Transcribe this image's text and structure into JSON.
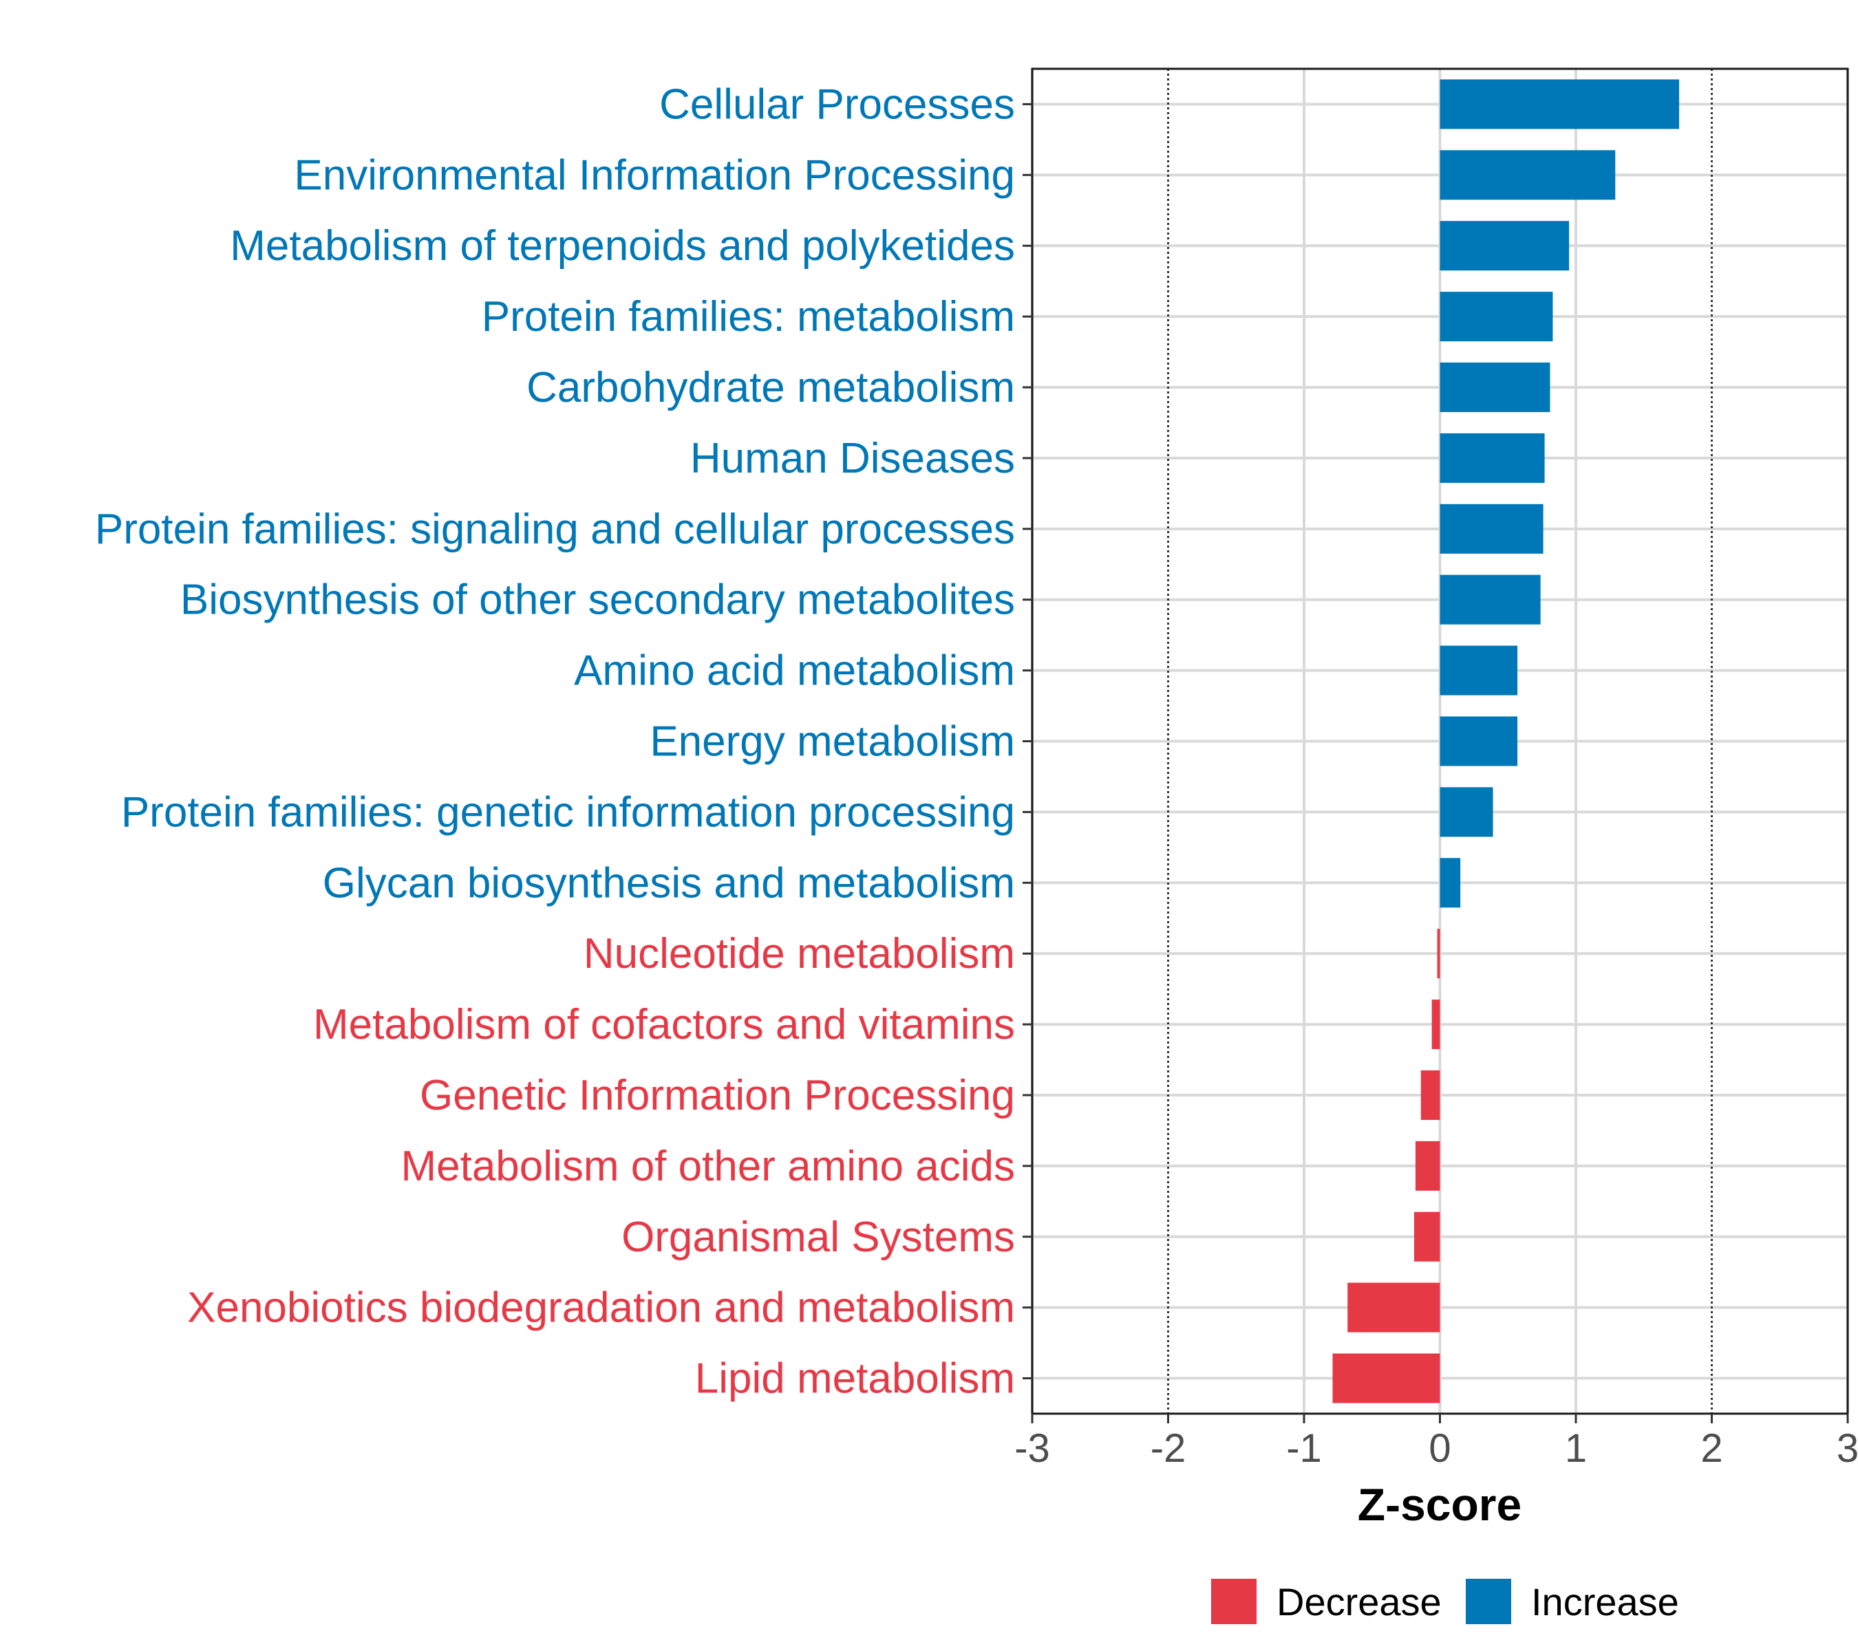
{
  "chart_data": {
    "type": "bar",
    "orientation": "horizontal",
    "xlabel": "Z-score",
    "xlim": [
      -3,
      3
    ],
    "xticks": [
      -3,
      -2,
      -1,
      0,
      1,
      2,
      3
    ],
    "xtick_labels": [
      "-3",
      "-2",
      "-1",
      "0",
      "1",
      "2",
      "3"
    ],
    "reference_lines": [
      -2,
      2
    ],
    "grid": true,
    "legend_position": "bottom",
    "colors": {
      "Decrease": "#e63946",
      "Increase": "#0077b6"
    },
    "legend": [
      {
        "label": "Decrease",
        "color": "#e63946"
      },
      {
        "label": "Increase",
        "color": "#0077b6"
      }
    ],
    "bars": [
      {
        "category": "Cellular Processes",
        "value": 1.76,
        "group": "Increase"
      },
      {
        "category": "Environmental Information Processing",
        "value": 1.29,
        "group": "Increase"
      },
      {
        "category": "Metabolism of terpenoids and polyketides",
        "value": 0.95,
        "group": "Increase"
      },
      {
        "category": "Protein families: metabolism",
        "value": 0.83,
        "group": "Increase"
      },
      {
        "category": "Carbohydrate metabolism",
        "value": 0.81,
        "group": "Increase"
      },
      {
        "category": "Human Diseases",
        "value": 0.77,
        "group": "Increase"
      },
      {
        "category": "Protein families: signaling and cellular processes",
        "value": 0.76,
        "group": "Increase"
      },
      {
        "category": "Biosynthesis of other secondary metabolites",
        "value": 0.74,
        "group": "Increase"
      },
      {
        "category": "Amino acid metabolism",
        "value": 0.57,
        "group": "Increase"
      },
      {
        "category": "Energy metabolism",
        "value": 0.57,
        "group": "Increase"
      },
      {
        "category": "Protein families: genetic information processing",
        "value": 0.39,
        "group": "Increase"
      },
      {
        "category": "Glycan biosynthesis and metabolism",
        "value": 0.15,
        "group": "Increase"
      },
      {
        "category": "Nucleotide metabolism",
        "value": -0.02,
        "group": "Decrease"
      },
      {
        "category": "Metabolism of cofactors and vitamins",
        "value": -0.06,
        "group": "Decrease"
      },
      {
        "category": "Genetic Information Processing",
        "value": -0.14,
        "group": "Decrease"
      },
      {
        "category": "Metabolism of other amino acids",
        "value": -0.18,
        "group": "Decrease"
      },
      {
        "category": "Organismal Systems",
        "value": -0.19,
        "group": "Decrease"
      },
      {
        "category": "Xenobiotics biodegradation and metabolism",
        "value": -0.68,
        "group": "Decrease"
      },
      {
        "category": "Lipid metabolism",
        "value": -0.79,
        "group": "Decrease"
      }
    ]
  }
}
